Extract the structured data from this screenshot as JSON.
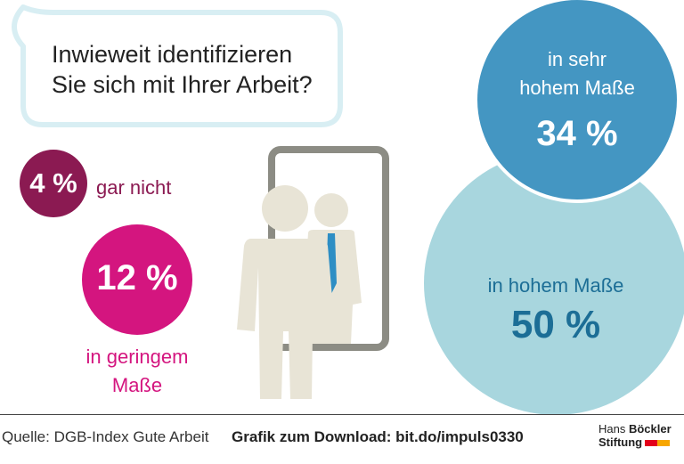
{
  "question": {
    "line1": "Inwieweit identifizieren",
    "line2": "Sie sich mit Ihrer Arbeit?"
  },
  "chart_data": {
    "type": "bubble",
    "unit": "%",
    "categories": [
      "gar nicht",
      "in geringem Maße",
      "in hohem Maße",
      "in sehr hohem Maße"
    ],
    "values": [
      4,
      12,
      50,
      34
    ],
    "colors": [
      "#8b1a52",
      "#d4157f",
      "#a8d6de",
      "#4496c2"
    ]
  },
  "labels": {
    "gar_nicht": "gar nicht",
    "geringem_1": "in geringem",
    "geringem_2": "Maße",
    "hohem": "in hohem Maße",
    "sehr_1": "in sehr",
    "sehr_2": "hohem Maße",
    "v_gar": "4 %",
    "v_gering": "12 %",
    "v_hohem": "50 %",
    "v_sehr": "34 %"
  },
  "footer": {
    "source": "Quelle: DGB-Index Gute Arbeit",
    "download": "Grafik zum Download: bit.do/impuls0330",
    "logo_line1_a": "Hans ",
    "logo_line1_b": "Böckler",
    "logo_line2": "Stiftung"
  },
  "colors": {
    "bubble_border": "#d8eef3",
    "figure": "#e8e4d6",
    "mirror_frame": "#8c8c84",
    "tie": "#2e8ec4"
  }
}
